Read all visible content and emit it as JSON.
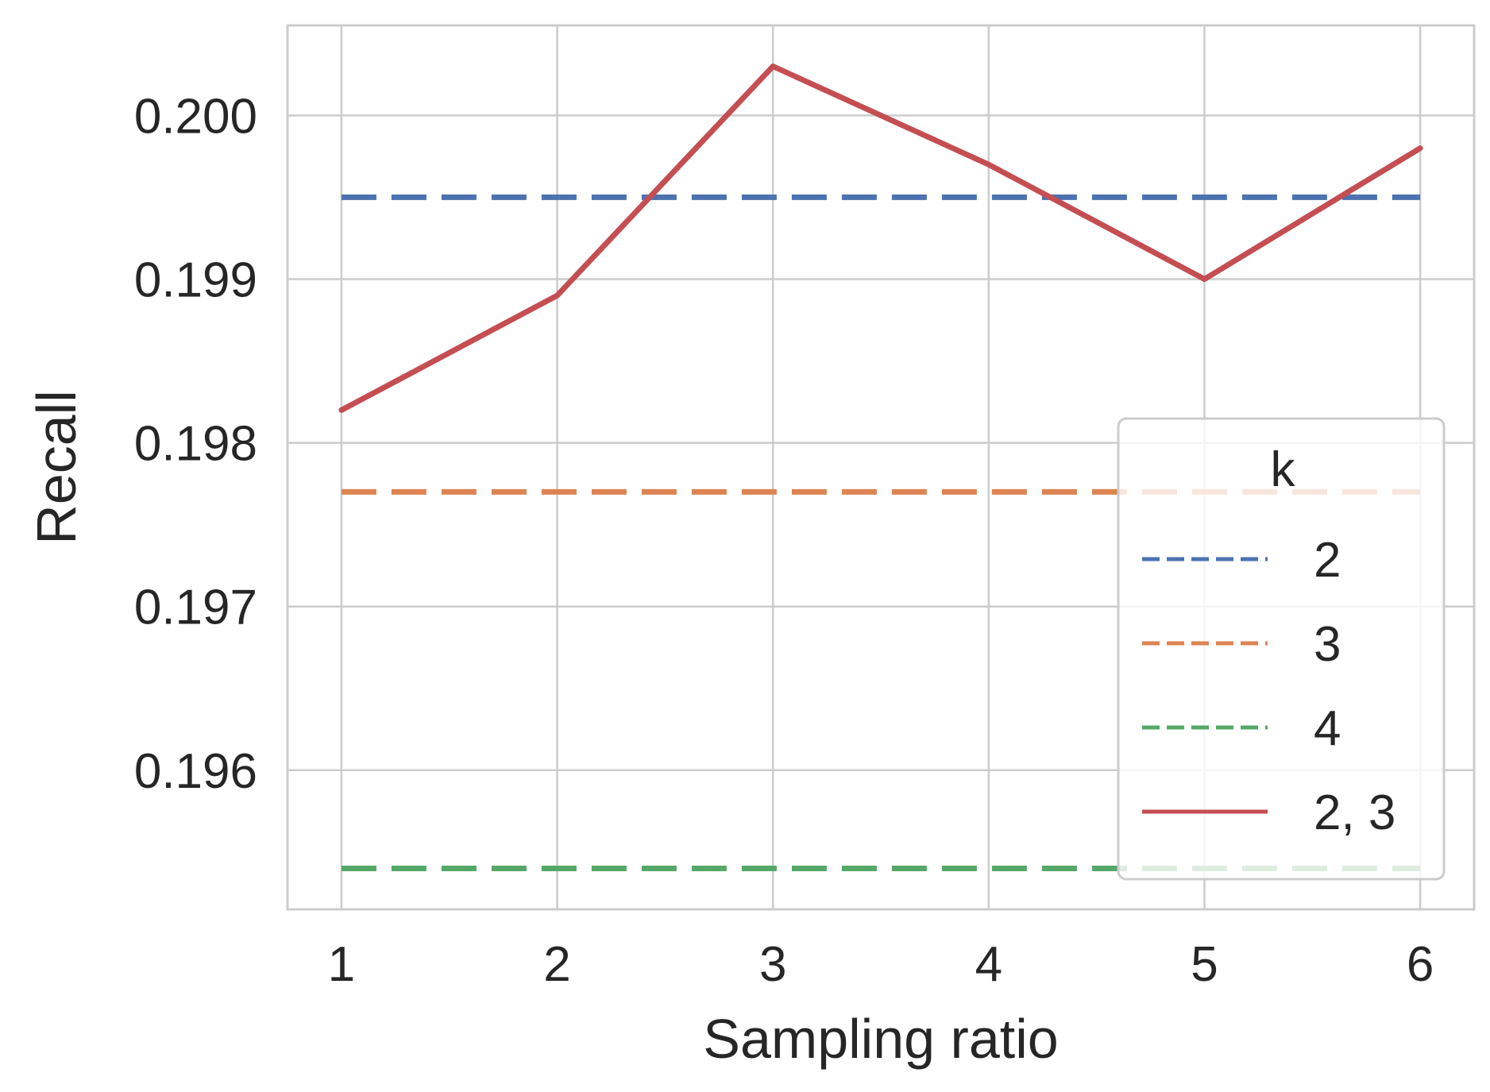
{
  "chart_data": {
    "type": "line",
    "title": "",
    "xlabel": "Sampling ratio",
    "ylabel": "Recall",
    "x": [
      1,
      2,
      3,
      4,
      5,
      6
    ],
    "xlim": [
      0.75,
      6.25
    ],
    "ylim": [
      0.19515,
      0.20055
    ],
    "xticks": [
      1,
      2,
      3,
      4,
      5,
      6
    ],
    "xtick_labels": [
      "1",
      "2",
      "3",
      "4",
      "5",
      "6"
    ],
    "yticks": [
      0.196,
      0.197,
      0.198,
      0.199,
      0.2
    ],
    "ytick_labels": [
      "0.196",
      "0.197",
      "0.198",
      "0.199",
      "0.200"
    ],
    "grid": true,
    "legend": {
      "title": "k",
      "placement": "lower-right"
    },
    "series": [
      {
        "name": "2",
        "values": [
          0.1995,
          0.1995,
          0.1995,
          0.1995,
          0.1995,
          0.1995
        ],
        "color": "#4c72b0",
        "style": "dashed"
      },
      {
        "name": "3",
        "values": [
          0.1977,
          0.1977,
          0.1977,
          0.1977,
          0.1977,
          0.1977
        ],
        "color": "#dd8452",
        "style": "dashed"
      },
      {
        "name": "4",
        "values": [
          0.1954,
          0.1954,
          0.1954,
          0.1954,
          0.1954,
          0.1954
        ],
        "color": "#55a868",
        "style": "dashed"
      },
      {
        "name": "2, 3",
        "values": [
          0.1982,
          0.1989,
          0.2003,
          0.1997,
          0.199,
          0.1998
        ],
        "color": "#c44e52",
        "style": "solid"
      }
    ]
  }
}
